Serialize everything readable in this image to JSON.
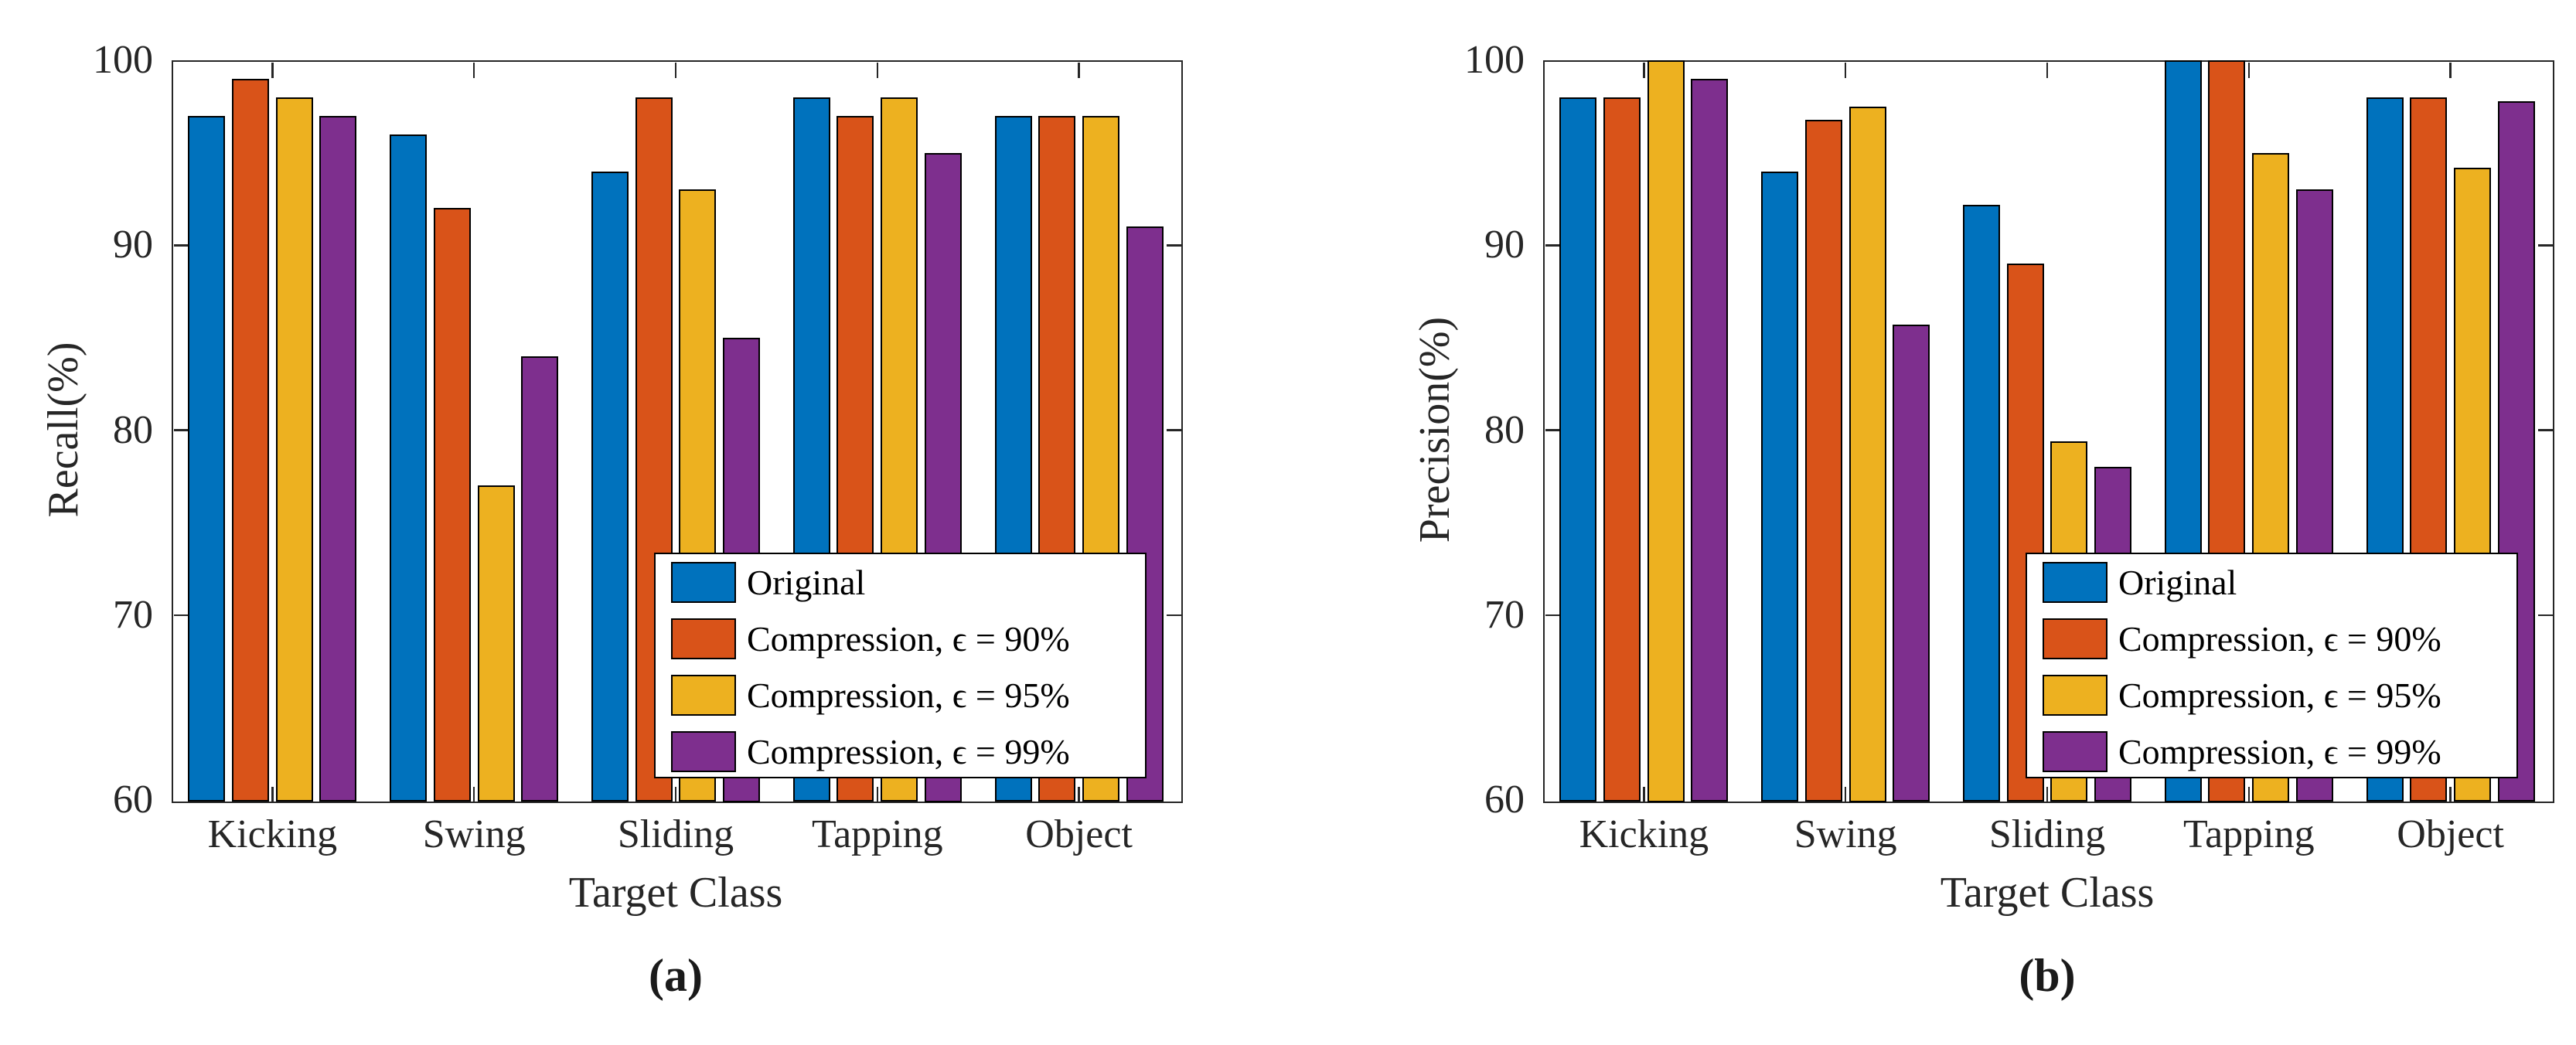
{
  "figure": {
    "background": "#ffffff",
    "axis_color": "#262626",
    "bar_edge_color": "#000000"
  },
  "chart_data": [
    {
      "type": "bar",
      "title": "",
      "xlabel": "Target Class",
      "ylabel": "Recall(%)",
      "sublabel": "(a)",
      "categories": [
        "Kicking",
        "Swing",
        "Sliding",
        "Tapping",
        "Object"
      ],
      "series": [
        {
          "name": "Original",
          "color": "#0072BD",
          "values": [
            97,
            96,
            94,
            98,
            97
          ]
        },
        {
          "name": "Compression, ϵ = 90%",
          "color": "#D95319",
          "values": [
            99,
            92,
            98,
            97,
            97
          ]
        },
        {
          "name": "Compression, ϵ = 95%",
          "color": "#EDB120",
          "values": [
            98,
            77,
            93,
            98,
            97
          ]
        },
        {
          "name": "Compression, ϵ = 99%",
          "color": "#7E2F8E",
          "values": [
            97,
            84,
            85,
            95,
            91
          ]
        }
      ],
      "ylim": [
        60,
        100
      ],
      "yticks": [
        60,
        70,
        80,
        90,
        100
      ],
      "grid": "off",
      "legend_position": "southeast"
    },
    {
      "type": "bar",
      "title": "",
      "xlabel": "Target Class",
      "ylabel": "Precision(%)",
      "sublabel": "(b)",
      "categories": [
        "Kicking",
        "Swing",
        "Sliding",
        "Tapping",
        "Object"
      ],
      "series": [
        {
          "name": "Original",
          "color": "#0072BD",
          "values": [
            98,
            94,
            92.2,
            100,
            98
          ]
        },
        {
          "name": "Compression, ϵ = 90%",
          "color": "#D95319",
          "values": [
            98,
            96.8,
            89,
            100,
            98
          ]
        },
        {
          "name": "Compression, ϵ = 95%",
          "color": "#EDB120",
          "values": [
            100,
            97.5,
            79.4,
            95,
            94.2
          ]
        },
        {
          "name": "Compression, ϵ = 99%",
          "color": "#7E2F8E",
          "values": [
            99,
            85.7,
            78,
            93,
            97.8
          ]
        }
      ],
      "ylim": [
        60,
        100
      ],
      "yticks": [
        60,
        70,
        80,
        90,
        100
      ],
      "grid": "off",
      "legend_position": "southeast"
    }
  ]
}
